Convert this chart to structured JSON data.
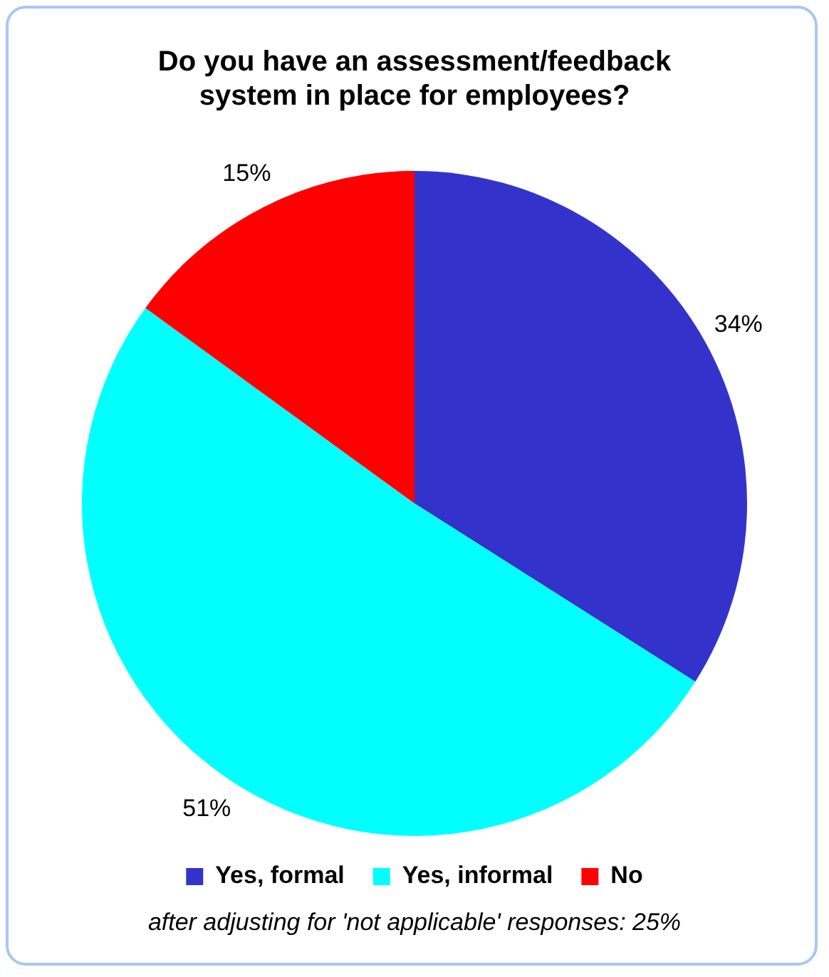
{
  "chart_data": {
    "type": "pie",
    "title": "Do you have an assessment/feedback system in place for employees?",
    "categories": [
      "Yes, formal",
      "Yes, informal",
      "No"
    ],
    "values": [
      34,
      51,
      15
    ],
    "colors": [
      "#3333cc",
      "#00ffff",
      "#ff0000"
    ],
    "value_labels": [
      "34%",
      "51%",
      "15%"
    ],
    "legend": "bottom",
    "annotations": [
      "after adjusting for 'not applicable' responses: 25%"
    ]
  }
}
